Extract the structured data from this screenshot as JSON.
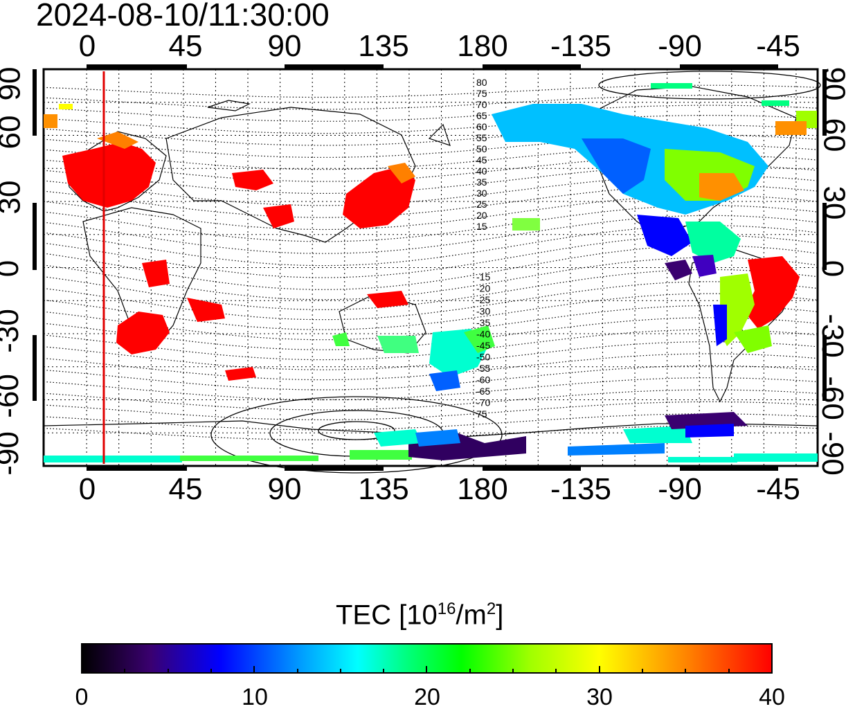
{
  "timestamp": "2024-08-10/11:30:00",
  "lon_ticks": [
    "0",
    "45",
    "90",
    "135",
    "180",
    "-135",
    "-90",
    "-45"
  ],
  "lat_ticks": [
    "90",
    "60",
    "30",
    "0",
    "-30",
    "-60",
    "-90"
  ],
  "geomag_labels_north": [
    "80",
    "75",
    "70",
    "65",
    "60",
    "55",
    "50",
    "45",
    "40",
    "35",
    "30",
    "25",
    "20",
    "15"
  ],
  "geomag_labels_south": [
    "-15",
    "-20",
    "-25",
    "-30",
    "-35",
    "-40",
    "-45",
    "-50",
    "-55",
    "-60",
    "-65",
    "-70",
    "75"
  ],
  "colorbar": {
    "label_main": "TEC  [10",
    "label_exp1": "16",
    "label_mid": "/m",
    "label_exp2": "2",
    "label_end": "]",
    "min": 0,
    "max": 40,
    "tick_labels": [
      "0",
      "10",
      "20",
      "30",
      "40"
    ],
    "colors": [
      "#000000",
      "#3a0070",
      "#0000ff",
      "#00a0ff",
      "#00ffff",
      "#00ff80",
      "#00ff00",
      "#a0ff00",
      "#ffff00",
      "#ff8000",
      "#ff0000"
    ]
  },
  "map": {
    "lon_range": [
      -20,
      340
    ],
    "lat_range": [
      -90,
      90
    ],
    "marker_longitude": 8,
    "marker_color": "#e00000"
  }
}
